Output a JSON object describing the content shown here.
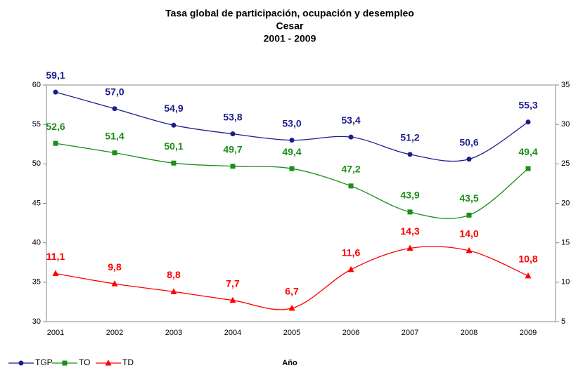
{
  "chart_data": {
    "type": "line",
    "title": "Tasa global de participación, ocupación y desempleo",
    "subtitle": [
      "Cesar",
      "2001 - 2009"
    ],
    "xlabel": "Año",
    "categories": [
      "2001",
      "2002",
      "2003",
      "2004",
      "2005",
      "2006",
      "2007",
      "2008",
      "2009"
    ],
    "series": [
      {
        "name": "TGP",
        "color": "#1c1c8c",
        "marker": "circle",
        "values": [
          59.1,
          57.0,
          54.9,
          53.8,
          53.0,
          53.4,
          51.2,
          50.6,
          55.3
        ],
        "value_labels": [
          "59,1",
          "57,0",
          "54,9",
          "53,8",
          "53,0",
          "53,4",
          "51,2",
          "50,6",
          "55,3"
        ]
      },
      {
        "name": "TO",
        "color": "#1a8f1a",
        "marker": "square",
        "values": [
          52.6,
          51.4,
          50.1,
          49.7,
          49.4,
          47.2,
          43.9,
          43.5,
          49.4
        ],
        "value_labels": [
          "52,6",
          "51,4",
          "50,1",
          "49,7",
          "49,4",
          "47,2",
          "43,9",
          "43,5",
          "49,4"
        ]
      },
      {
        "name": "TD",
        "color": "#ff0000",
        "marker": "triangle",
        "axis": "y2",
        "values": [
          11.1,
          9.8,
          8.8,
          7.7,
          6.7,
          11.6,
          14.3,
          14.0,
          10.8
        ],
        "value_labels": [
          "11,1",
          "9,8",
          "8,8",
          "7,7",
          "6,7",
          "11,6",
          "14,3",
          "14,0",
          "10,8"
        ]
      }
    ],
    "ylim": [
      30,
      60
    ],
    "yticks": [
      30,
      35,
      40,
      45,
      50,
      55,
      60
    ],
    "y2lim": [
      5,
      35
    ],
    "y2ticks": [
      5,
      10,
      15,
      20,
      25,
      30,
      35
    ],
    "grid": false,
    "legend": "bottom-left"
  }
}
